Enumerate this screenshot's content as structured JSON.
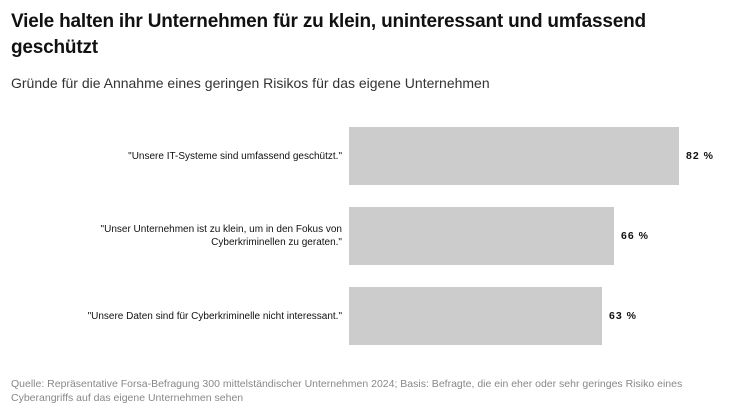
{
  "title": "Viele halten ihr Unternehmen für zu klein, uninteressant und umfassend geschützt",
  "subtitle": "Gründe für die Annahme eines geringen Risikos für das eigene Unternehmen",
  "source": "Quelle: Repräsentative Forsa-Befragung 300 mittelständischer Unternehmen 2024; Basis: Befragte, die ein eher oder sehr geringes Risiko eines Cyberangriffs auf das eigene Unternehmen sehen",
  "colors": {
    "bar": "#cccccc",
    "text": "#111111",
    "source": "#888888"
  },
  "chart_data": {
    "type": "bar",
    "orientation": "horizontal",
    "categories": [
      "\"Unsere IT-Systeme sind umfassend geschützt.\"",
      "\"Unser Unternehmen ist zu klein, um in den Fokus von Cyberkriminellen zu geraten.\"",
      "\"Unsere Daten sind für Cyberkriminelle nicht interessant.\""
    ],
    "values": [
      82,
      66,
      63
    ],
    "value_labels": [
      "82 %",
      "66 %",
      "63 %"
    ],
    "unit": "%",
    "xlim": [
      0,
      100
    ],
    "grid": false,
    "legend": "none"
  }
}
